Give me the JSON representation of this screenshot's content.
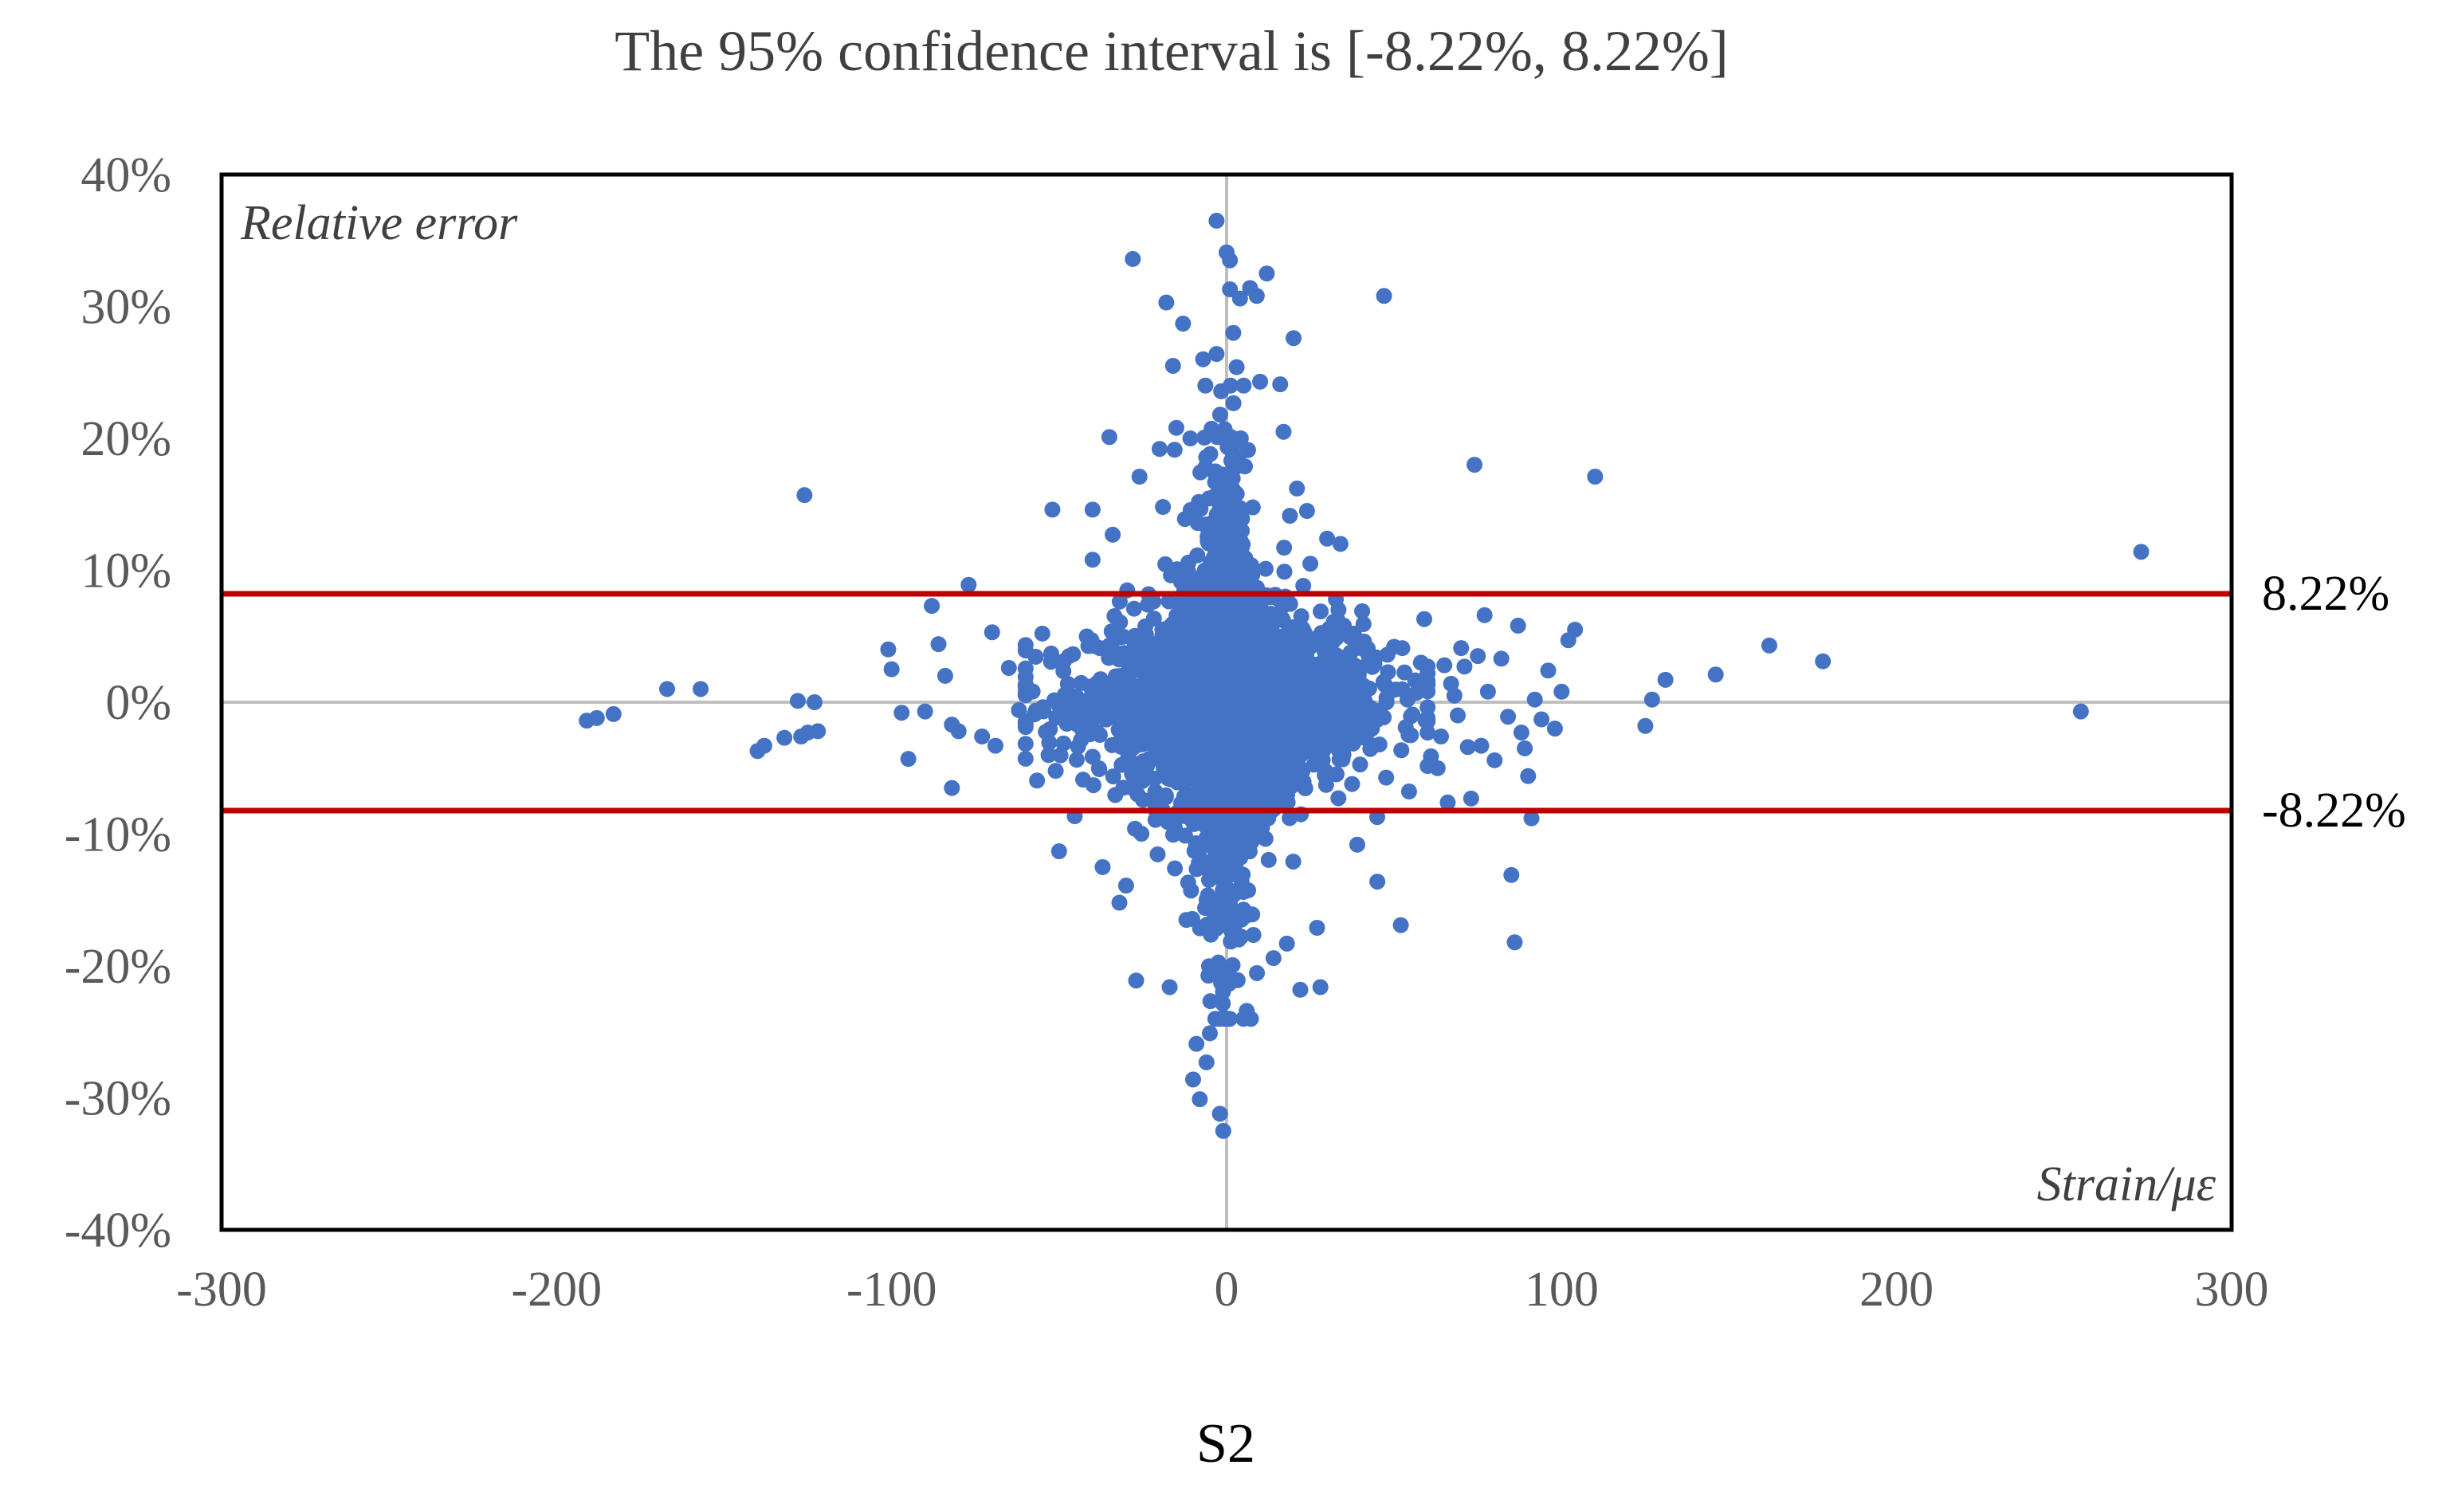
{
  "chart_data": {
    "type": "scatter",
    "title": "The 95% confidence interval is [-8.22%, 8.22%]",
    "subtitle": "",
    "xlabel": "S2",
    "ylabel": "",
    "y_axis_annotation": "Relative error",
    "x_axis_annotation": "Strain/με",
    "xlim": [
      -300,
      300
    ],
    "ylim": [
      -40,
      40
    ],
    "x_ticks": [
      -300,
      -200,
      -100,
      0,
      100,
      200,
      300
    ],
    "x_tick_labels": [
      "-300",
      "-200",
      "-100",
      "0",
      "100",
      "200",
      "300"
    ],
    "y_ticks": [
      40,
      30,
      20,
      10,
      0,
      -10,
      -20,
      -30,
      -40
    ],
    "y_tick_labels": [
      "40%",
      "30%",
      "20%",
      "10%",
      "0%",
      "-10%",
      "-20%",
      "-30%",
      "-40%"
    ],
    "grid": false,
    "zero_axes": true,
    "point_color": "#4472C4",
    "line_color": "#C00000",
    "reference_lines": [
      {
        "y": 8.22,
        "label": "8.22%"
      },
      {
        "y": -8.22,
        "label": "-8.22%"
      }
    ],
    "series": [
      {
        "name": "",
        "points": [
          [
            -191,
            -1.4
          ],
          [
            -188,
            -1.2
          ],
          [
            -183,
            -0.9
          ],
          [
            -167,
            1.0
          ],
          [
            -157,
            1.0
          ],
          [
            -140,
            -3.7
          ],
          [
            -138,
            -3.3
          ],
          [
            -132,
            -2.7
          ],
          [
            -128,
            0.1
          ],
          [
            -127,
            -2.6
          ],
          [
            -125,
            -2.3
          ],
          [
            -123,
            0.0
          ],
          [
            -122,
            -2.2
          ],
          [
            -126,
            15.7
          ],
          [
            -101,
            4.0
          ],
          [
            -100,
            2.5
          ],
          [
            -97,
            -0.8
          ],
          [
            -95,
            -4.3
          ],
          [
            -90,
            -0.7
          ],
          [
            -88,
            7.3
          ],
          [
            -86,
            4.4
          ],
          [
            -84,
            2.0
          ],
          [
            -82,
            -1.7
          ],
          [
            -80,
            -2.2
          ],
          [
            -82,
            -6.5
          ],
          [
            -77,
            8.9
          ],
          [
            -73,
            -2.6
          ],
          [
            -70,
            5.3
          ],
          [
            -69,
            -3.3
          ],
          [
            -65,
            2.6
          ],
          [
            -62,
            -0.6
          ],
          [
            -55,
            5.2
          ],
          [
            -52,
            14.6
          ],
          [
            -50,
            -11.3
          ],
          [
            -47,
            3.5
          ],
          [
            -40,
            14.6
          ],
          [
            -40,
            10.8
          ],
          [
            -37,
            -12.5
          ],
          [
            -35,
            20.1
          ],
          [
            -34,
            12.7
          ],
          [
            -32,
            -15.2
          ],
          [
            -30,
            -13.9
          ],
          [
            -28,
            33.6
          ],
          [
            -27,
            -21.1
          ],
          [
            -26,
            17.1
          ],
          [
            -25,
            -7.4
          ],
          [
            -20,
            19.2
          ],
          [
            -19,
            14.8
          ],
          [
            -18,
            30.3
          ],
          [
            -17,
            -21.6
          ],
          [
            -16,
            25.5
          ],
          [
            -15,
            20.8
          ],
          [
            -13,
            28.7
          ],
          [
            -12,
            -16.5
          ],
          [
            -10,
            -28.6
          ],
          [
            -9,
            -25.9
          ],
          [
            -8,
            -30.1
          ],
          [
            -7,
            26.0
          ],
          [
            -6,
            -27.3
          ],
          [
            -5,
            -25.1
          ],
          [
            -3,
            26.4
          ],
          [
            -3,
            36.5
          ],
          [
            -2,
            -31.2
          ],
          [
            -1,
            -32.5
          ],
          [
            0,
            34.1
          ],
          [
            1,
            33.5
          ],
          [
            1,
            31.3
          ],
          [
            2,
            28.0
          ],
          [
            3,
            25.4
          ],
          [
            4,
            30.6
          ],
          [
            5,
            -24.0
          ],
          [
            6,
            -23.4
          ],
          [
            7,
            31.4
          ],
          [
            9,
            30.8
          ],
          [
            10,
            24.3
          ],
          [
            12,
            32.5
          ],
          [
            14,
            -19.4
          ],
          [
            16,
            24.1
          ],
          [
            17,
            20.5
          ],
          [
            18,
            -18.3
          ],
          [
            20,
            27.6
          ],
          [
            21,
            16.2
          ],
          [
            22,
            -21.8
          ],
          [
            24,
            14.5
          ],
          [
            25,
            10.5
          ],
          [
            27,
            -17.1
          ],
          [
            28,
            -21.6
          ],
          [
            30,
            12.4
          ],
          [
            34,
            12.0
          ],
          [
            35,
            5.8
          ],
          [
            38,
            5.2
          ],
          [
            39,
            -10.8
          ],
          [
            41,
            4.6
          ],
          [
            45,
            -13.6
          ],
          [
            47,
            30.8
          ],
          [
            48,
            3.6
          ],
          [
            50,
            4.2
          ],
          [
            52,
            -16.9
          ],
          [
            54,
            0.2
          ],
          [
            55,
            -2.5
          ],
          [
            58,
            3.0
          ],
          [
            59,
            6.3
          ],
          [
            60,
            1.6
          ],
          [
            61,
            -4.1
          ],
          [
            63,
            -5.0
          ],
          [
            64,
            -2.6
          ],
          [
            65,
            2.8
          ],
          [
            66,
            -7.6
          ],
          [
            67,
            1.4
          ],
          [
            68,
            0.5
          ],
          [
            69,
            -1.0
          ],
          [
            70,
            4.1
          ],
          [
            71,
            2.7
          ],
          [
            72,
            -3.4
          ],
          [
            73,
            -7.3
          ],
          [
            74,
            18.0
          ],
          [
            75,
            3.5
          ],
          [
            76,
            -3.3
          ],
          [
            77,
            6.6
          ],
          [
            78,
            0.8
          ],
          [
            80,
            -4.4
          ],
          [
            82,
            3.3
          ],
          [
            84,
            -1.1
          ],
          [
            85,
            -13.1
          ],
          [
            86,
            -18.2
          ],
          [
            87,
            5.8
          ],
          [
            88,
            -2.3
          ],
          [
            89,
            -3.5
          ],
          [
            90,
            -5.6
          ],
          [
            91,
            -8.8
          ],
          [
            92,
            0.2
          ],
          [
            94,
            -1.3
          ],
          [
            96,
            2.4
          ],
          [
            98,
            -2.0
          ],
          [
            100,
            0.8
          ],
          [
            102,
            4.7
          ],
          [
            104,
            5.5
          ],
          [
            110,
            17.1
          ],
          [
            125,
            -1.8
          ],
          [
            127,
            0.2
          ],
          [
            131,
            1.7
          ],
          [
            146,
            2.1
          ],
          [
            162,
            4.3
          ],
          [
            178,
            3.1
          ],
          [
            255,
            -0.7
          ],
          [
            273,
            11.4
          ]
        ]
      }
    ]
  }
}
